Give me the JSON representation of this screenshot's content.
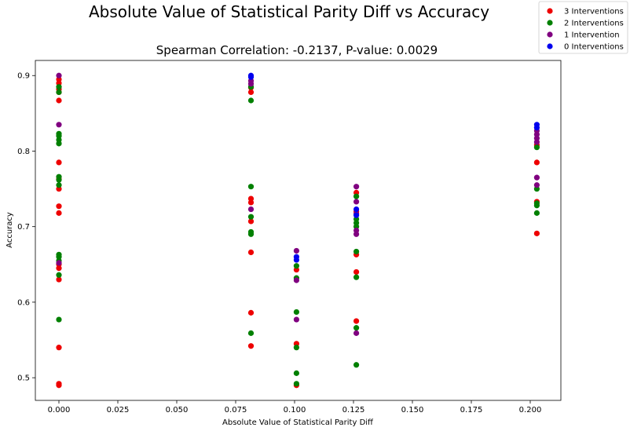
{
  "chart_data": {
    "type": "scatter",
    "title": "Absolute Value of Statistical Parity Diff vs Accuracy",
    "subtitle": "Spearman Correlation: -0.2137, P-value: 0.0029",
    "xlabel": "Absolute Value of Statistical Parity Diff",
    "ylabel": "Accuracy",
    "xlim": [
      -0.01,
      0.213
    ],
    "ylim": [
      0.47,
      0.92
    ],
    "xticks": [
      "0.000",
      "0.025",
      "0.050",
      "0.075",
      "0.100",
      "0.125",
      "0.150",
      "0.175",
      "0.200"
    ],
    "yticks": [
      "0.5",
      "0.6",
      "0.7",
      "0.8",
      "0.9"
    ],
    "legend_position": "top-right",
    "series": [
      {
        "name": "3 Interventions",
        "color": "#ee0000",
        "points": [
          [
            0,
            0.49
          ],
          [
            0,
            0.492
          ],
          [
            0,
            0.54
          ],
          [
            0,
            0.63
          ],
          [
            0,
            0.645
          ],
          [
            0,
            0.65
          ],
          [
            0,
            0.718
          ],
          [
            0,
            0.727
          ],
          [
            0,
            0.75
          ],
          [
            0,
            0.763
          ],
          [
            0,
            0.785
          ],
          [
            0,
            0.867
          ],
          [
            0,
            0.878
          ],
          [
            0,
            0.882
          ],
          [
            0,
            0.89
          ],
          [
            0,
            0.895
          ],
          [
            0.0815,
            0.542
          ],
          [
            0.0815,
            0.586
          ],
          [
            0.0815,
            0.666
          ],
          [
            0.0815,
            0.707
          ],
          [
            0.0815,
            0.732
          ],
          [
            0.0815,
            0.737
          ],
          [
            0.0815,
            0.878
          ],
          [
            0.0815,
            0.884
          ],
          [
            0.1008,
            0.49
          ],
          [
            0.1008,
            0.545
          ],
          [
            0.1008,
            0.643
          ],
          [
            0.1262,
            0.575
          ],
          [
            0.1262,
            0.64
          ],
          [
            0.1262,
            0.663
          ],
          [
            0.1262,
            0.72
          ],
          [
            0.1262,
            0.745
          ],
          [
            0.2028,
            0.691
          ],
          [
            0.2028,
            0.733
          ],
          [
            0.2028,
            0.785
          ],
          [
            0.2028,
            0.808
          ]
        ]
      },
      {
        "name": "2 Interventions",
        "color": "#008000",
        "points": [
          [
            0,
            0.577
          ],
          [
            0,
            0.636
          ],
          [
            0,
            0.655
          ],
          [
            0,
            0.66
          ],
          [
            0,
            0.663
          ],
          [
            0,
            0.755
          ],
          [
            0,
            0.762
          ],
          [
            0,
            0.766
          ],
          [
            0,
            0.81
          ],
          [
            0,
            0.815
          ],
          [
            0,
            0.82
          ],
          [
            0,
            0.823
          ],
          [
            0,
            0.878
          ],
          [
            0,
            0.885
          ],
          [
            0.0815,
            0.559
          ],
          [
            0.0815,
            0.69
          ],
          [
            0.0815,
            0.693
          ],
          [
            0.0815,
            0.713
          ],
          [
            0.0815,
            0.753
          ],
          [
            0.0815,
            0.867
          ],
          [
            0.0815,
            0.885
          ],
          [
            0.1008,
            0.492
          ],
          [
            0.1008,
            0.506
          ],
          [
            0.1008,
            0.54
          ],
          [
            0.1008,
            0.587
          ],
          [
            0.1008,
            0.632
          ],
          [
            0.1008,
            0.648
          ],
          [
            0.1262,
            0.517
          ],
          [
            0.1262,
            0.566
          ],
          [
            0.1262,
            0.633
          ],
          [
            0.1262,
            0.667
          ],
          [
            0.1262,
            0.7
          ],
          [
            0.1262,
            0.705
          ],
          [
            0.1262,
            0.71
          ],
          [
            0.1262,
            0.74
          ],
          [
            0.2028,
            0.718
          ],
          [
            0.2028,
            0.728
          ],
          [
            0.2028,
            0.731
          ],
          [
            0.2028,
            0.75
          ],
          [
            0.2028,
            0.805
          ]
        ]
      },
      {
        "name": "1 Intervention",
        "color": "#800080",
        "points": [
          [
            0,
            0.652
          ],
          [
            0,
            0.835
          ],
          [
            0,
            0.9
          ],
          [
            0.0815,
            0.723
          ],
          [
            0.0815,
            0.889
          ],
          [
            0.0815,
            0.893
          ],
          [
            0.1008,
            0.577
          ],
          [
            0.1008,
            0.629
          ],
          [
            0.1008,
            0.668
          ],
          [
            0.1262,
            0.559
          ],
          [
            0.1262,
            0.69
          ],
          [
            0.1262,
            0.695
          ],
          [
            0.1262,
            0.717
          ],
          [
            0.1262,
            0.733
          ],
          [
            0.1262,
            0.753
          ],
          [
            0.2028,
            0.755
          ],
          [
            0.2028,
            0.765
          ],
          [
            0.2028,
            0.812
          ],
          [
            0.2028,
            0.817
          ],
          [
            0.2028,
            0.822
          ],
          [
            0.2028,
            0.827
          ]
        ]
      },
      {
        "name": "0 Interventions",
        "color": "#0000ee",
        "points": [
          [
            0.0815,
            0.898
          ],
          [
            0.0815,
            0.9
          ],
          [
            0.1008,
            0.656
          ],
          [
            0.1008,
            0.66
          ],
          [
            0.1262,
            0.715
          ],
          [
            0.1262,
            0.723
          ],
          [
            0.2028,
            0.831
          ],
          [
            0.2028,
            0.835
          ]
        ]
      }
    ]
  }
}
